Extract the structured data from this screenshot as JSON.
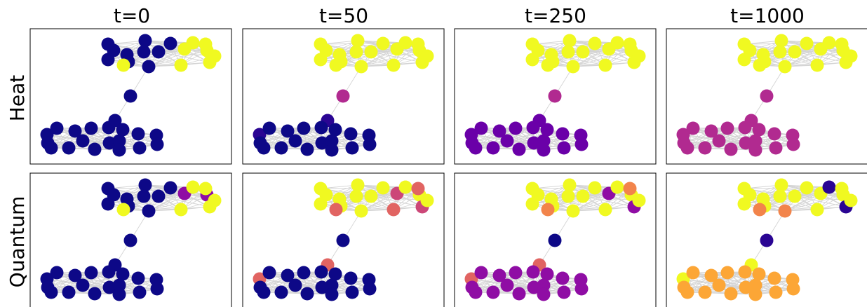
{
  "figure": {
    "column_titles": [
      "t=0",
      "t=50",
      "t=250",
      "t=1000"
    ],
    "row_titles": [
      "Heat",
      "Quantum"
    ]
  },
  "colors": {
    "c0": "#0d0887",
    "c1": "#2a0593",
    "c2": "#6a00a8",
    "c3": "#8f0da4",
    "c4": "#b12a90",
    "c5": "#cc4778",
    "c6": "#e16462",
    "c7": "#f2844b",
    "c8": "#fca636",
    "c9": "#f0f921",
    "edge": "#d4d4d4",
    "frame": "#000000"
  },
  "nodes": {
    "top_cluster": 18,
    "bridge": 1,
    "bottom_cluster": 18
  },
  "panels": [
    {
      "row": "Heat",
      "time": "t=0",
      "top": [
        "c0",
        "c0",
        "c0",
        "c0",
        "c0",
        "c0",
        "c0",
        "c0",
        "c0",
        "c0",
        "c9",
        "c9",
        "c9",
        "c9",
        "c9",
        "c9",
        "c9",
        "c9"
      ],
      "bridge": "c0",
      "bottom": [
        "c0",
        "c0",
        "c0",
        "c0",
        "c0",
        "c0",
        "c0",
        "c0",
        "c0",
        "c0",
        "c0",
        "c0",
        "c0",
        "c0",
        "c0",
        "c0",
        "c0",
        "c0"
      ]
    },
    {
      "row": "Heat",
      "time": "t=50",
      "top": [
        "c9",
        "c9",
        "c9",
        "c9",
        "c9",
        "c9",
        "c9",
        "c9",
        "c9",
        "c9",
        "c9",
        "c9",
        "c9",
        "c9",
        "c9",
        "c9",
        "c9",
        "c9"
      ],
      "bridge": "c4",
      "bottom": [
        "c1",
        "c0",
        "c0",
        "c0",
        "c0",
        "c0",
        "c0",
        "c0",
        "c0",
        "c0",
        "c0",
        "c0",
        "c0",
        "c0",
        "c0",
        "c0",
        "c0",
        "c0"
      ]
    },
    {
      "row": "Heat",
      "time": "t=250",
      "top": [
        "c9",
        "c9",
        "c9",
        "c9",
        "c9",
        "c9",
        "c9",
        "c9",
        "c9",
        "c9",
        "c9",
        "c9",
        "c9",
        "c9",
        "c9",
        "c9",
        "c9",
        "c9"
      ],
      "bridge": "c4",
      "bottom": [
        "c2",
        "c2",
        "c2",
        "c2",
        "c2",
        "c2",
        "c2",
        "c2",
        "c2",
        "c2",
        "c2",
        "c2",
        "c2",
        "c2",
        "c2",
        "c2",
        "c2",
        "c2"
      ]
    },
    {
      "row": "Heat",
      "time": "t=1000",
      "top": [
        "c9",
        "c9",
        "c9",
        "c9",
        "c9",
        "c9",
        "c9",
        "c9",
        "c9",
        "c9",
        "c9",
        "c9",
        "c9",
        "c9",
        "c9",
        "c9",
        "c9",
        "c9"
      ],
      "bridge": "c4",
      "bottom": [
        "c4",
        "c4",
        "c4",
        "c4",
        "c4",
        "c4",
        "c4",
        "c4",
        "c4",
        "c4",
        "c4",
        "c4",
        "c4",
        "c4",
        "c4",
        "c4",
        "c4",
        "c4"
      ]
    },
    {
      "row": "Quantum",
      "time": "t=0",
      "top": [
        "c0",
        "c0",
        "c0",
        "c0",
        "c0",
        "c0",
        "c0",
        "c0",
        "c0",
        "c0",
        "c3",
        "c9",
        "c3",
        "c9",
        "c9",
        "c9",
        "c9",
        "c9"
      ],
      "bridge": "c0",
      "bottom": [
        "c0",
        "c0",
        "c0",
        "c0",
        "c0",
        "c0",
        "c0",
        "c0",
        "c0",
        "c0",
        "c0",
        "c0",
        "c0",
        "c0",
        "c0",
        "c0",
        "c0",
        "c0"
      ]
    },
    {
      "row": "Quantum",
      "time": "t=50",
      "top": [
        "c9",
        "c9",
        "c9",
        "c9",
        "c9",
        "c9",
        "c9",
        "c9",
        "c9",
        "c9",
        "c5",
        "c9",
        "c9",
        "c6",
        "c6",
        "c5",
        "c6",
        "c9"
      ],
      "bridge": "c0",
      "bottom": [
        "c6",
        "c0",
        "c0",
        "c0",
        "c0",
        "c0",
        "c0",
        "c0",
        "c0",
        "c0",
        "c0",
        "c0",
        "c0",
        "c0",
        "c0",
        "c0",
        "c0",
        "c0"
      ]
    },
    {
      "row": "Quantum",
      "time": "t=250",
      "top": [
        "c9",
        "c9",
        "c9",
        "c9",
        "c9",
        "c9",
        "c9",
        "c9",
        "c9",
        "c9",
        "c3",
        "c9",
        "c9",
        "c7",
        "c9",
        "c3",
        "c7",
        "c9"
      ],
      "bridge": "c0",
      "bottom": [
        "c6",
        "c3",
        "c3",
        "c3",
        "c3",
        "c3",
        "c3",
        "c3",
        "c3",
        "c3",
        "c3",
        "c3",
        "c3",
        "c3",
        "c3",
        "c3",
        "c3",
        "c3"
      ]
    },
    {
      "row": "Quantum",
      "time": "t=1000",
      "top": [
        "c9",
        "c9",
        "c9",
        "c9",
        "c9",
        "c9",
        "c9",
        "c9",
        "c9",
        "c7",
        "c9",
        "c1",
        "c9",
        "c7",
        "c9",
        "c1",
        "c9",
        "c9"
      ],
      "bridge": "c1",
      "bottom": [
        "c9",
        "c8",
        "c8",
        "c8",
        "c8",
        "c8",
        "c8",
        "c8",
        "c8",
        "c8",
        "c8",
        "c8",
        "c8",
        "c8",
        "c8",
        "c8",
        "c8",
        "c8"
      ]
    }
  ]
}
